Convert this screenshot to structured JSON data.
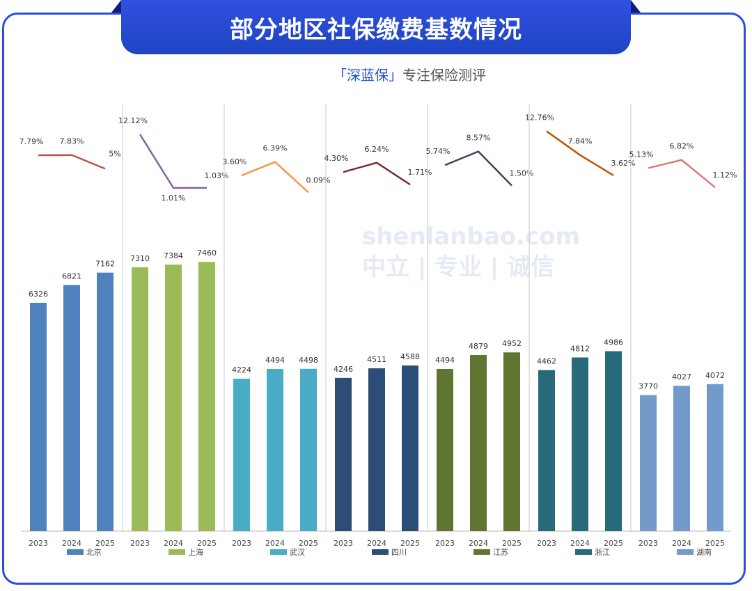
{
  "title": "部分地区社保缴费基数情况",
  "subtitle": {
    "brand": "「深蓝保」",
    "text": "专注保险测评"
  },
  "watermark": {
    "logo": "深蓝保",
    "url": "shenlanbao.com",
    "slogan": "中立 | 专业 | 诚信"
  },
  "chart_data": {
    "type": "bar",
    "years": [
      "2023",
      "2024",
      "2025"
    ],
    "series": [
      {
        "name": "北京",
        "values": [
          6326,
          6821,
          7162
        ],
        "growth": [
          "7.79%",
          "7.83%",
          "5%"
        ],
        "growth_values": [
          7.79,
          7.83,
          5
        ],
        "bar_color": "#4f81bd",
        "line_color": "#c0504d"
      },
      {
        "name": "上海",
        "values": [
          7310,
          7384,
          7460
        ],
        "growth": [
          "12.12%",
          "1.01%",
          "1.03%"
        ],
        "growth_values": [
          12.12,
          1.01,
          1.03
        ],
        "bar_color": "#9bbb59",
        "line_color": "#8064a2"
      },
      {
        "name": "武汉",
        "values": [
          4224,
          4494,
          4498
        ],
        "growth": [
          "3.60%",
          "6.39%",
          "0.09%"
        ],
        "growth_values": [
          3.6,
          6.39,
          0.09
        ],
        "bar_color": "#4bacc6",
        "line_color": "#f79646"
      },
      {
        "name": "四川",
        "values": [
          4246,
          4511,
          4588
        ],
        "growth": [
          "4.30%",
          "6.24%",
          "1.71%"
        ],
        "growth_values": [
          4.3,
          6.24,
          1.71
        ],
        "bar_color": "#2c4d75",
        "line_color": "#772c2a"
      },
      {
        "name": "江苏",
        "values": [
          4494,
          4879,
          4952
        ],
        "growth": [
          "5.74%",
          "8.57%",
          "1.50%"
        ],
        "growth_values": [
          5.74,
          8.57,
          1.5
        ],
        "bar_color": "#5f7530",
        "line_color": "#4d3b62"
      },
      {
        "name": "浙江",
        "values": [
          4462,
          4812,
          4986
        ],
        "growth": [
          "12.76%",
          "7.84%",
          "3.62%"
        ],
        "growth_values": [
          12.76,
          7.84,
          3.62
        ],
        "bar_color": "#276a7c",
        "line_color": "#b65708"
      },
      {
        "name": "湖南",
        "values": [
          3770,
          4027,
          4072
        ],
        "growth": [
          "5.13%",
          "6.82%",
          "1.12%"
        ],
        "growth_values": [
          5.13,
          6.82,
          1.12
        ],
        "bar_color": "#729aca",
        "line_color": "#d9797a"
      }
    ],
    "legend": "bottom",
    "grid": false
  }
}
